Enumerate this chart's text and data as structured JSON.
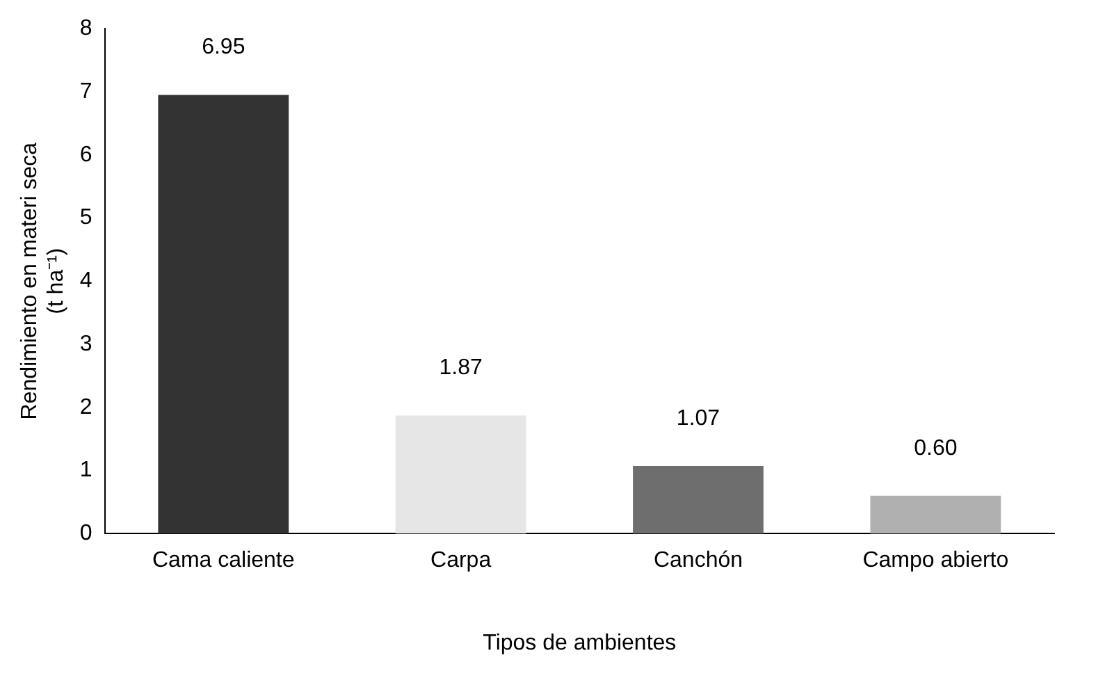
{
  "chart_data": {
    "type": "bar",
    "xlabel": "Tipos de ambientes",
    "ylabel": [
      "Rendimiento en materi seca",
      "(t ha⁻¹)"
    ],
    "categories": [
      "Cama caliente",
      "Carpa",
      "Canchón",
      "Campo abierto"
    ],
    "values": [
      6.95,
      1.87,
      1.07,
      0.6
    ],
    "value_labels": [
      "6.95",
      "1.87",
      "1.07",
      "0.60"
    ],
    "colors": [
      "#333333",
      "#e6e6e6",
      "#6e6e6e",
      "#b0b0b0"
    ],
    "ylim": [
      0,
      8
    ],
    "yticks": [
      0,
      1,
      2,
      3,
      4,
      5,
      6,
      7,
      8
    ],
    "grid": false,
    "legend": false
  }
}
